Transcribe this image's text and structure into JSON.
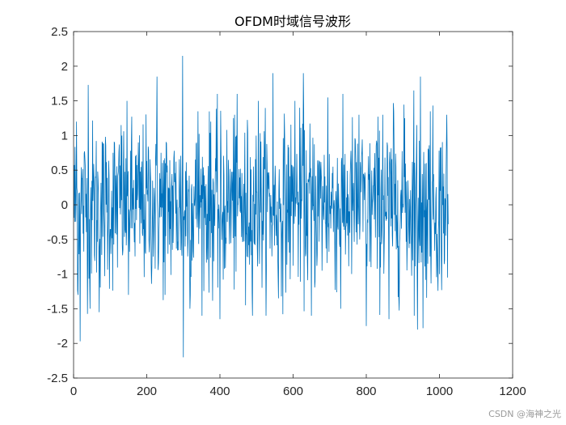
{
  "chart_data": {
    "type": "line",
    "title": "OFDM时域信号波形",
    "xlabel": "",
    "ylabel": "",
    "xlim": [
      0,
      1200
    ],
    "ylim": [
      -2.5,
      2.5
    ],
    "xticks": [
      0,
      200,
      400,
      600,
      800,
      1000,
      1200
    ],
    "yticks": [
      -2.5,
      -2,
      -1.5,
      -1,
      -0.5,
      0,
      0.5,
      1,
      1.5,
      2,
      2.5
    ],
    "xtick_labels": [
      "0",
      "200",
      "400",
      "600",
      "800",
      "1000",
      "1200"
    ],
    "ytick_labels": [
      "-2.5",
      "-2",
      "-1.5",
      "-1",
      "-0.5",
      "0",
      "0.5",
      "1",
      "1.5",
      "2",
      "2.5"
    ],
    "grid": false,
    "legend": "none",
    "series_color": "#0072BD",
    "n_points": 1024,
    "x_start": 1,
    "x_end": 1024,
    "amplitude_std": 0.6,
    "y_extremes": [
      {
        "x": 8,
        "y": 1.2
      },
      {
        "x": 12,
        "y": -1.3
      },
      {
        "x": 18,
        "y": -1.97
      },
      {
        "x": 40,
        "y": 1.73
      },
      {
        "x": 45,
        "y": -1.5
      },
      {
        "x": 70,
        "y": -1.55
      },
      {
        "x": 130,
        "y": 1.15
      },
      {
        "x": 150,
        "y": -1.3
      },
      {
        "x": 228,
        "y": 1.85
      },
      {
        "x": 250,
        "y": -1.3
      },
      {
        "x": 298,
        "y": 2.15
      },
      {
        "x": 300,
        "y": -2.2
      },
      {
        "x": 318,
        "y": -1.5
      },
      {
        "x": 340,
        "y": 1.35
      },
      {
        "x": 375,
        "y": 1.2
      },
      {
        "x": 400,
        "y": -1.65
      },
      {
        "x": 440,
        "y": 1.3
      },
      {
        "x": 470,
        "y": -1.45
      },
      {
        "x": 505,
        "y": 1.5
      },
      {
        "x": 545,
        "y": 1.9
      },
      {
        "x": 560,
        "y": -1.35
      },
      {
        "x": 605,
        "y": 1.5
      },
      {
        "x": 628,
        "y": 1.9
      },
      {
        "x": 650,
        "y": -1.6
      },
      {
        "x": 695,
        "y": 1.55
      },
      {
        "x": 730,
        "y": -1.5
      },
      {
        "x": 780,
        "y": 1.3
      },
      {
        "x": 800,
        "y": -1.75
      },
      {
        "x": 845,
        "y": 1.3
      },
      {
        "x": 862,
        "y": -1.65
      },
      {
        "x": 875,
        "y": 1.35
      },
      {
        "x": 905,
        "y": 1.25
      },
      {
        "x": 930,
        "y": 1.65
      },
      {
        "x": 940,
        "y": -1.8
      },
      {
        "x": 948,
        "y": 1.85
      },
      {
        "x": 955,
        "y": -1.78
      },
      {
        "x": 975,
        "y": 1.35
      },
      {
        "x": 1000,
        "y": -1.0
      },
      {
        "x": 1020,
        "y": 1.3
      },
      {
        "x": 1022,
        "y": -1.05
      }
    ]
  },
  "watermark": "CSDN @海神之光"
}
